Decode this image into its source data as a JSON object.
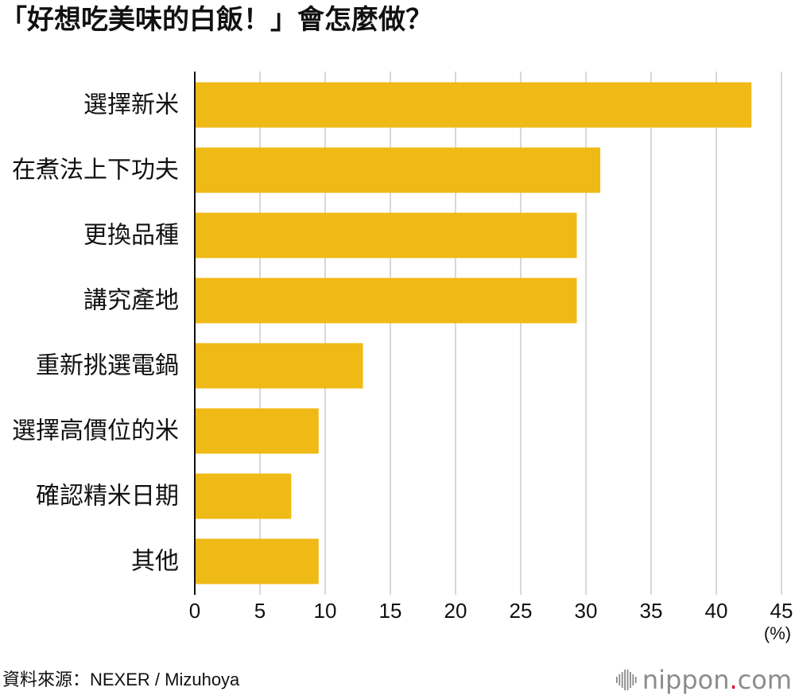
{
  "chart_data": {
    "type": "bar",
    "orientation": "horizontal",
    "title": "「好想吃美味的白飯！」會怎麼做？",
    "categories": [
      "選擇新米",
      "在煮法上下功夫",
      "更換品種",
      "講究產地",
      "重新挑選電鍋",
      "選擇高價位的米",
      "確認精米日期",
      "其他"
    ],
    "values": [
      42.7,
      31.1,
      29.3,
      29.3,
      12.9,
      9.5,
      7.4,
      9.5
    ],
    "xlim": [
      0,
      45
    ],
    "xticks": [
      0,
      5,
      10,
      15,
      20,
      25,
      30,
      35,
      40,
      45
    ],
    "x_unit": "(%)",
    "grid": true,
    "bar_color": "#EFBA16",
    "grid_color": "#CCCCCC"
  },
  "source": "資料來源：NEXER / Mizuhoya",
  "logo": {
    "icon": "sound-wave-icon",
    "name": "nippon",
    "dot": ".",
    "suffix": "com",
    "text_color": "#8C8C8C",
    "dot_color": "#E60033"
  }
}
